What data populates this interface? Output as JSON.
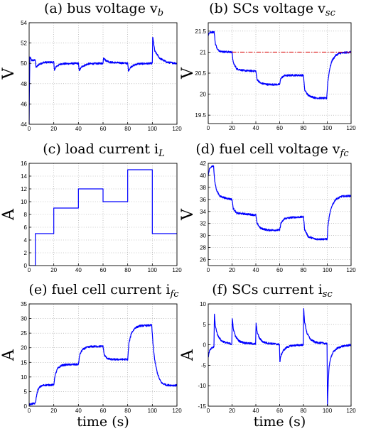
{
  "chart_data": [
    {
      "id": "a",
      "type": "line",
      "title": "(a) bus voltage v",
      "title_sub": "b",
      "ylabel": "V",
      "xlabel": "",
      "xlim": [
        0,
        120
      ],
      "ylim": [
        44,
        54
      ],
      "xticks": [
        0,
        20,
        40,
        60,
        80,
        100,
        120
      ],
      "yticks": [
        44,
        46,
        48,
        50,
        52,
        54
      ],
      "grid": true,
      "series": [
        {
          "color": "#0000ff",
          "noisy": true,
          "x": [
            0,
            0.2,
            0.6,
            1.2,
            2,
            5,
            5.6,
            8,
            12,
            20,
            20.6,
            22,
            26,
            40,
            40.6,
            43,
            48,
            60,
            60.4,
            62,
            66,
            80,
            80.6,
            83,
            88,
            100,
            100.3,
            102,
            106,
            112,
            120
          ],
          "y": [
            44,
            47,
            50.6,
            50.5,
            50.3,
            50.3,
            49.6,
            49.9,
            50.1,
            50.1,
            49.3,
            49.7,
            49.95,
            50.0,
            49.3,
            49.7,
            49.95,
            50.0,
            50.6,
            50.3,
            50.1,
            50.0,
            49.3,
            49.7,
            49.95,
            50.0,
            52.6,
            51.2,
            50.5,
            50.1,
            50.0
          ]
        }
      ]
    },
    {
      "id": "b",
      "type": "line",
      "title": "(b) SCs voltage v",
      "title_sub": "sc",
      "ylabel": "V",
      "xlabel": "",
      "xlim": [
        0,
        120
      ],
      "ylim": [
        19.3,
        21.7
      ],
      "xticks": [
        0,
        20,
        40,
        60,
        80,
        100,
        120
      ],
      "yticks": [
        19.5,
        20,
        20.5,
        21,
        21.5
      ],
      "grid": true,
      "series": [
        {
          "color": "#0000ff",
          "noisy": true,
          "x": [
            0,
            0.5,
            2,
            5,
            6,
            8,
            12,
            20,
            21,
            24,
            30,
            40,
            41,
            44,
            50,
            60,
            61,
            64,
            70,
            80,
            81,
            84,
            90,
            99.5,
            100.5,
            102,
            104,
            107,
            110,
            115,
            120
          ],
          "y": [
            21.38,
            21.45,
            21.47,
            21.48,
            21.2,
            21.05,
            21.01,
            21.0,
            20.75,
            20.6,
            20.56,
            20.55,
            20.35,
            20.26,
            20.23,
            20.23,
            20.38,
            20.44,
            20.45,
            20.45,
            20.1,
            19.97,
            19.91,
            19.9,
            20.3,
            20.6,
            20.8,
            20.92,
            20.97,
            20.99,
            21.0
          ]
        },
        {
          "color": "#dd0000",
          "dashed": true,
          "x": [
            20,
            120
          ],
          "y": [
            21.0,
            21.0
          ]
        }
      ]
    },
    {
      "id": "c",
      "type": "line",
      "title": "(c) load current i",
      "title_sub": "L",
      "ylabel": "A",
      "xlabel": "",
      "xlim": [
        0,
        120
      ],
      "ylim": [
        0,
        16
      ],
      "xticks": [
        0,
        20,
        40,
        60,
        80,
        100,
        120
      ],
      "yticks": [
        0,
        2,
        4,
        6,
        8,
        10,
        12,
        14,
        16
      ],
      "grid": true,
      "series": [
        {
          "color": "#0000ff",
          "noisy": false,
          "x": [
            0,
            5,
            5,
            20,
            20,
            40,
            40,
            60,
            60,
            80,
            80,
            100,
            100,
            120
          ],
          "y": [
            0,
            0,
            5,
            5,
            9,
            9,
            12,
            12,
            10,
            10,
            15,
            15,
            5,
            5
          ]
        }
      ]
    },
    {
      "id": "d",
      "type": "line",
      "title": "(d) fuel cell voltage v",
      "title_sub": "fc",
      "ylabel": "V",
      "xlabel": "",
      "xlim": [
        0,
        120
      ],
      "ylim": [
        25,
        42
      ],
      "xticks": [
        0,
        20,
        40,
        60,
        80,
        100,
        120
      ],
      "yticks": [
        26,
        28,
        30,
        32,
        34,
        36,
        38,
        40,
        42
      ],
      "grid": true,
      "series": [
        {
          "color": "#0000ff",
          "noisy": true,
          "x": [
            0,
            1,
            3,
            4.5,
            5.5,
            7,
            10,
            15,
            20,
            21,
            24,
            30,
            40,
            41,
            44,
            50,
            60,
            61,
            64,
            70,
            80,
            81,
            84,
            90,
            100,
            100.5,
            102,
            104,
            107,
            112,
            120
          ],
          "y": [
            40,
            41,
            41.5,
            41.5,
            39,
            37.5,
            36.5,
            36.2,
            36.0,
            34.5,
            33.7,
            33.6,
            33.4,
            32,
            31.2,
            30.9,
            30.9,
            32.0,
            32.8,
            33.0,
            33.1,
            31,
            29.8,
            29.4,
            29.4,
            31.5,
            33.5,
            35,
            36,
            36.5,
            36.6
          ]
        }
      ]
    },
    {
      "id": "e",
      "type": "line",
      "title": "(e) fuel cell current i",
      "title_sub": "fc",
      "ylabel": "A",
      "xlabel": "time (s)",
      "xlim": [
        0,
        120
      ],
      "ylim": [
        0,
        35
      ],
      "xticks": [
        0,
        20,
        40,
        60,
        80,
        100,
        120
      ],
      "yticks": [
        0,
        5,
        10,
        15,
        20,
        25,
        30,
        35
      ],
      "grid": true,
      "series": [
        {
          "color": "#0000ff",
          "noisy": true,
          "x": [
            0,
            1,
            3,
            5,
            6,
            7,
            9,
            12,
            20,
            21,
            23,
            26,
            30,
            40,
            41,
            43,
            46,
            50,
            60,
            61,
            63,
            66,
            80,
            81,
            83,
            86,
            90,
            99.5,
            100.5,
            102,
            104,
            106,
            108,
            112,
            120
          ],
          "y": [
            0.5,
            0.7,
            0.8,
            1.0,
            3.5,
            5.5,
            6.7,
            7.2,
            7.3,
            10.5,
            12.8,
            13.9,
            14.2,
            14.3,
            17.5,
            19.2,
            20.0,
            20.4,
            20.5,
            17.5,
            16.5,
            16.0,
            16.0,
            21.5,
            25.0,
            26.8,
            27.5,
            27.7,
            21.5,
            15.5,
            11.5,
            9.0,
            7.8,
            7.2,
            7.1
          ]
        }
      ]
    },
    {
      "id": "f",
      "type": "line",
      "title": "(f) SCs current i",
      "title_sub": "sc",
      "ylabel": "A",
      "xlabel": "time (s)",
      "xlim": [
        0,
        120
      ],
      "ylim": [
        -15,
        10
      ],
      "xticks": [
        0,
        20,
        40,
        60,
        80,
        100,
        120
      ],
      "yticks": [
        -15,
        -10,
        -5,
        0,
        5,
        10
      ],
      "grid": true,
      "series": [
        {
          "color": "#0000ff",
          "noisy": true,
          "x": [
            0,
            1,
            3,
            4.8,
            5.2,
            6,
            8,
            11,
            15,
            19.8,
            20.2,
            21,
            23,
            26,
            30,
            39.8,
            40.2,
            41,
            43,
            46,
            50,
            59.8,
            60.2,
            61,
            63,
            66,
            70,
            79.8,
            80.2,
            81,
            83,
            86,
            90,
            99.8,
            100.2,
            100.8,
            101.5,
            103,
            105,
            108,
            112,
            116,
            120
          ],
          "y": [
            -3,
            -1.5,
            -0.8,
            -0.5,
            7.5,
            4.5,
            2.3,
            1.0,
            0.5,
            0.2,
            6.5,
            4.0,
            2.0,
            0.9,
            0.5,
            0.2,
            5.2,
            3.2,
            1.6,
            0.7,
            0.4,
            0.1,
            -4.2,
            -2.7,
            -1.4,
            -0.6,
            -0.2,
            0,
            8.8,
            5.5,
            2.8,
            1.3,
            0.6,
            0.3,
            -15,
            -9,
            -5.5,
            -3,
            -1.8,
            -0.9,
            -0.4,
            -0.2,
            0
          ]
        }
      ]
    }
  ]
}
